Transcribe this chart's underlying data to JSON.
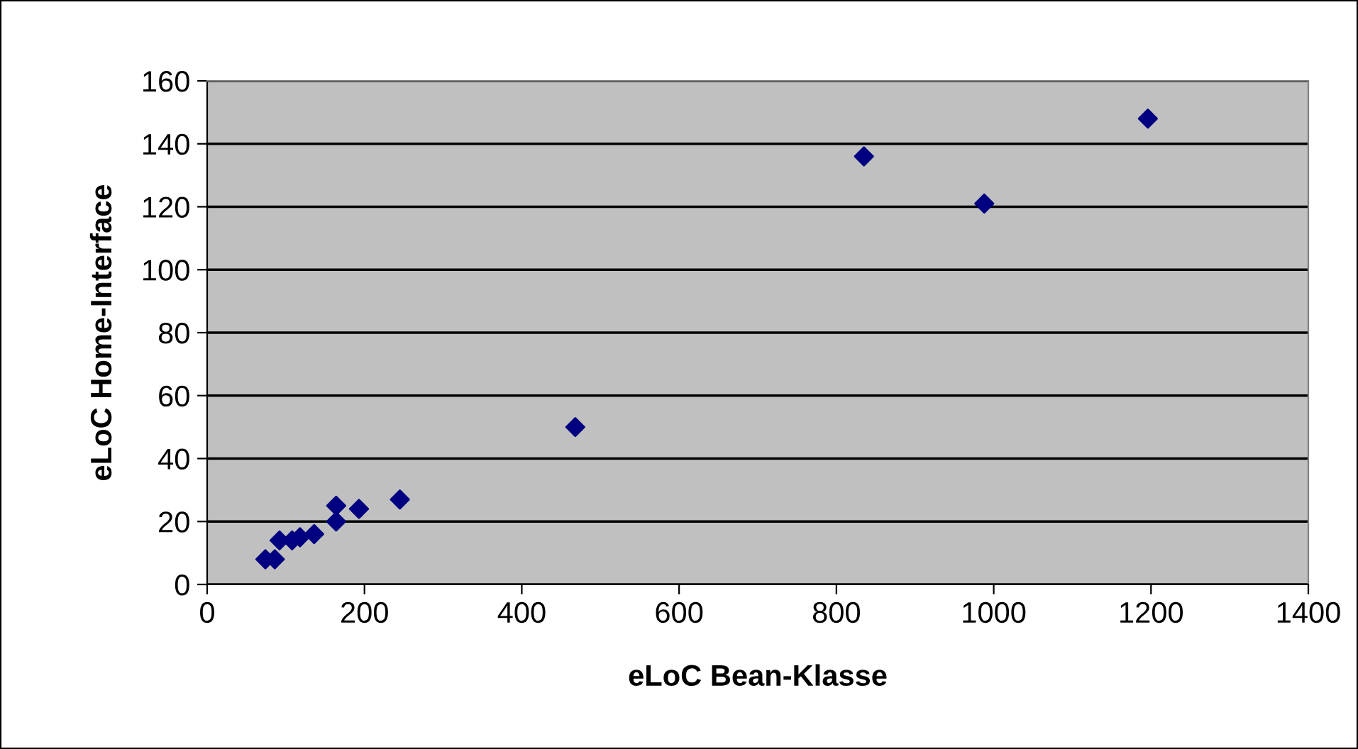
{
  "chart_data": {
    "type": "scatter",
    "xlabel": "eLoC Bean-Klasse",
    "ylabel": "eLoC Home-Interface",
    "x": [
      74,
      86,
      92,
      108,
      118,
      136,
      164,
      164,
      193,
      245,
      468,
      835,
      988,
      1196
    ],
    "series": [
      {
        "color": "#000080",
        "values": [
          8,
          8,
          14,
          14,
          15,
          16,
          25,
          20,
          24,
          27,
          50,
          136,
          121,
          148
        ]
      }
    ],
    "xlim": [
      0,
      1400
    ],
    "xticks": [
      0,
      200,
      400,
      600,
      800,
      1000,
      1200,
      1400
    ],
    "ylim": [
      0,
      160
    ],
    "yticks": [
      0,
      20,
      40,
      60,
      80,
      100,
      120,
      140,
      160
    ],
    "grid": "y",
    "marker": "diamond",
    "legend": false
  }
}
